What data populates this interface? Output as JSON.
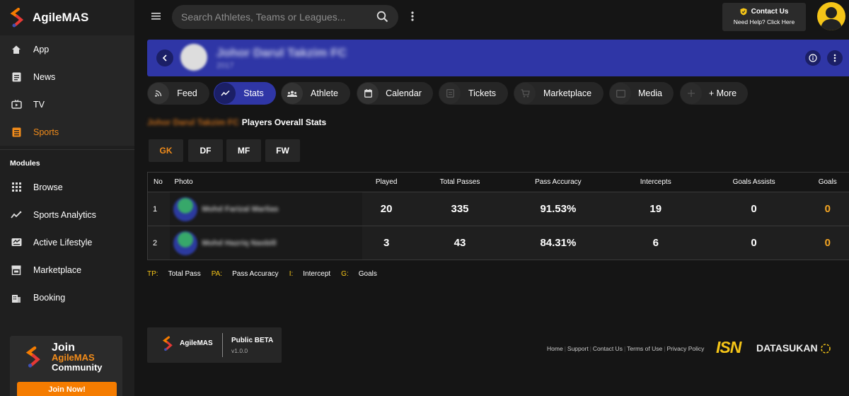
{
  "brand": {
    "name": "AgileMAS"
  },
  "sidebar": {
    "primary": [
      {
        "label": "App",
        "icon": "home-icon"
      },
      {
        "label": "News",
        "icon": "news-icon"
      },
      {
        "label": "TV",
        "icon": "tv-icon"
      },
      {
        "label": "Sports",
        "icon": "sports-icon",
        "active": true
      }
    ],
    "modules_label": "Modules",
    "modules": [
      {
        "label": "Browse",
        "icon": "grid-icon"
      },
      {
        "label": "Sports Analytics",
        "icon": "analytics-icon"
      },
      {
        "label": "Active Lifestyle",
        "icon": "lifestyle-icon"
      },
      {
        "label": "Marketplace",
        "icon": "store-icon"
      },
      {
        "label": "Booking",
        "icon": "building-icon"
      }
    ],
    "promo": {
      "line1": "Join",
      "line2": "AgileMAS",
      "line3": "Community",
      "button": "Join Now!"
    }
  },
  "topbar": {
    "search_placeholder": "Search Athletes, Teams or Leagues...",
    "contact_title": "Contact Us",
    "contact_sub": "Need Help? Click Here"
  },
  "team": {
    "name": "Johor Darul Takzim FC",
    "sub": "2017"
  },
  "tabs": [
    {
      "label": "Feed",
      "icon": "rss-icon"
    },
    {
      "label": "Stats",
      "icon": "chart-icon",
      "active": true
    },
    {
      "label": "Athlete",
      "icon": "people-icon"
    },
    {
      "label": "Calendar",
      "icon": "calendar-icon"
    },
    {
      "label": "Tickets",
      "icon": "ticket-icon"
    },
    {
      "label": "Marketplace",
      "icon": "cart-icon"
    },
    {
      "label": "Media",
      "icon": "media-icon"
    },
    {
      "label": "+ More",
      "icon": "plus-icon"
    }
  ],
  "section": {
    "team_prefix": "Johor Darul Takzim FC",
    "title": "Players Overall Stats"
  },
  "positions": [
    {
      "label": "GK",
      "active": true
    },
    {
      "label": "DF"
    },
    {
      "label": "MF"
    },
    {
      "label": "FW"
    }
  ],
  "table": {
    "headers": [
      "No",
      "Photo",
      "Played",
      "Total Passes",
      "Pass Accuracy",
      "Intercepts",
      "Goals Assists",
      "Goals"
    ],
    "rows": [
      {
        "no": "1",
        "name": "Mohd Farizal Marlias",
        "played": "20",
        "passes": "335",
        "accuracy": "91.53%",
        "intercepts": "19",
        "assists": "0",
        "goals": "0"
      },
      {
        "no": "2",
        "name": "Mohd Hazriq Nasbill",
        "played": "3",
        "passes": "43",
        "accuracy": "84.31%",
        "intercepts": "6",
        "assists": "0",
        "goals": "0"
      }
    ]
  },
  "legend": [
    {
      "key": "TP:",
      "value": "Total Pass"
    },
    {
      "key": "PA:",
      "value": "Pass Accuracy"
    },
    {
      "key": "I:",
      "value": "Intercept"
    },
    {
      "key": "G:",
      "value": "Goals"
    }
  ],
  "footer": {
    "brand": "AgileMAS",
    "beta": "Public BETA",
    "version": "v1.0.0",
    "links": [
      "Home",
      "Support",
      "Contact Us",
      "Terms of Use",
      "Privacy Policy"
    ],
    "isn": "ISN",
    "datasukan_a": "DATA",
    "datasukan_b": "SUKAN"
  },
  "colors": {
    "accent": "#f28c1a",
    "brand_blue": "#2f36a6",
    "gold": "#f5c518"
  }
}
